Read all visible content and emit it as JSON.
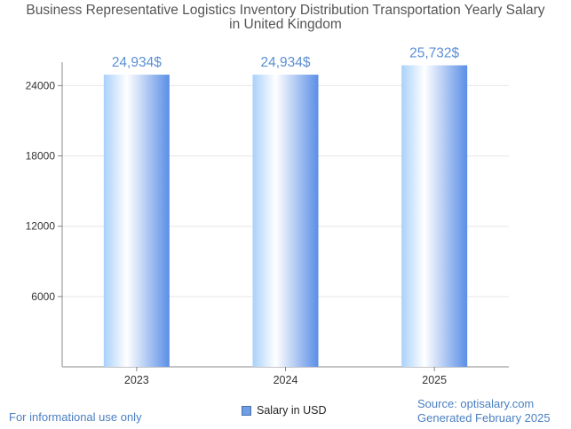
{
  "title_line1": "Business Representative Logistics Inventory Distribution Transportation Yearly Salary",
  "title_line2": "in United Kingdom",
  "legend_label": "Salary in USD",
  "footer_left": "For informational use only",
  "footer_source": "Source: optisalary.com",
  "footer_generated": "Generated February 2025",
  "colors": {
    "bar_left": "#a9d1fb",
    "bar_mid": "#ffffff",
    "bar_right": "#5a8ee6",
    "value_label": "#5b8fd6",
    "axis": "#888888",
    "grid": "#e6e6e6"
  },
  "chart_data": {
    "type": "bar",
    "categories": [
      "2023",
      "2024",
      "2025"
    ],
    "values": [
      24934,
      24934,
      25732
    ],
    "value_labels": [
      "24,934$",
      "24,934$",
      "25,732$"
    ],
    "y_ticks": [
      6000,
      12000,
      18000,
      24000
    ],
    "y_tick_labels": [
      "6000",
      "12000",
      "18000",
      "24000"
    ],
    "ylim": [
      0,
      26000
    ],
    "series": [
      {
        "name": "Salary in USD",
        "values": [
          24934,
          24934,
          25732
        ]
      }
    ],
    "grid": true,
    "legend_position": "bottom"
  }
}
